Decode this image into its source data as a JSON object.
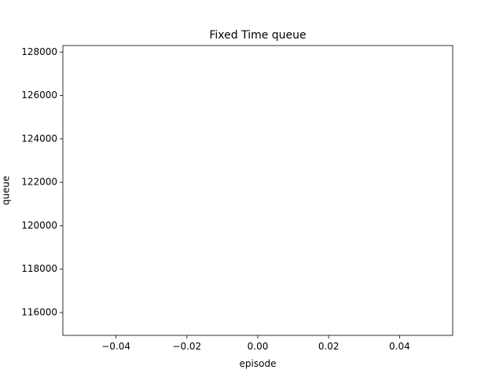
{
  "chart_data": {
    "type": "line",
    "title": "Fixed Time queue",
    "xlabel": "episode",
    "ylabel": "queue",
    "xlim": [
      -0.055,
      0.055
    ],
    "ylim": [
      114950,
      128300
    ],
    "xticks": [
      -0.04,
      -0.02,
      0.0,
      0.02,
      0.04
    ],
    "xtick_labels": [
      "−0.04",
      "−0.02",
      "0.00",
      "0.02",
      "0.04"
    ],
    "yticks": [
      116000,
      118000,
      120000,
      122000,
      124000,
      126000,
      128000
    ],
    "ytick_labels": [
      "116000",
      "118000",
      "120000",
      "122000",
      "124000",
      "126000",
      "128000"
    ],
    "series": [
      {
        "x": [],
        "y": [],
        "color": "#1f77b4"
      }
    ],
    "grid": false,
    "legend": "none"
  }
}
